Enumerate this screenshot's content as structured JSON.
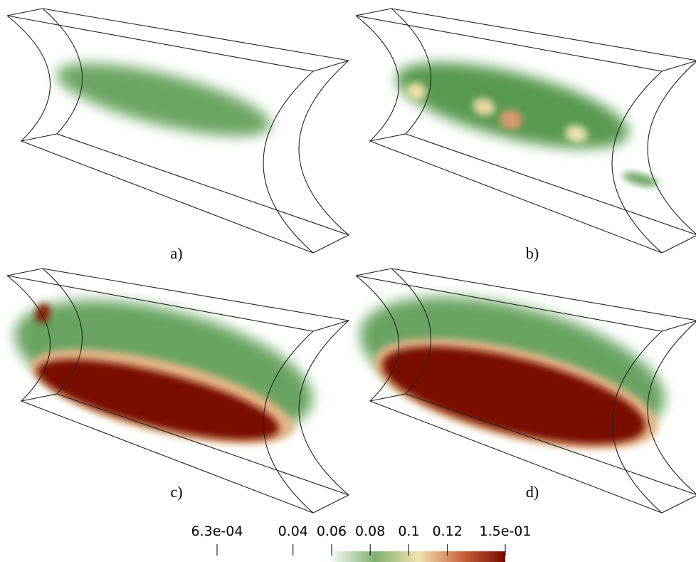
{
  "panels": [
    {
      "label": "a)"
    },
    {
      "label": "b)"
    },
    {
      "label": "c)"
    },
    {
      "label": "d)"
    }
  ],
  "colorbar": {
    "range": [
      0.00063,
      0.15
    ],
    "ticks": [
      {
        "value": 0.00063,
        "label": "6.3e-04"
      },
      0.04,
      0.06,
      0.08,
      0.1,
      0.12,
      {
        "value": 0.15,
        "label": "1.5e-01"
      }
    ],
    "colormap_range": [
      0.06,
      0.15
    ],
    "colormap": [
      "#f4f8f1",
      "#7fb06f",
      "#f2e2b0",
      "#c9653f",
      "#7a0a00"
    ]
  }
}
